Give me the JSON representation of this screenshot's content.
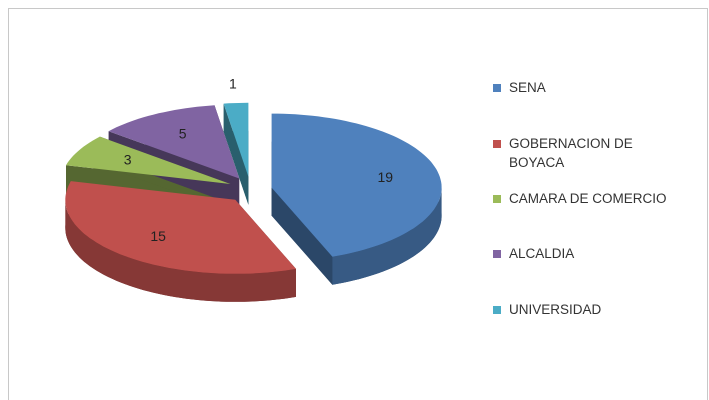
{
  "chart_data": {
    "type": "pie",
    "categories": [
      "SENA",
      "GOBERNACION DE BOYACA",
      "CAMARA DE COMERCIO",
      "ALCALDIA",
      "UNIVERSIDAD"
    ],
    "values": [
      19,
      15,
      3,
      5,
      1
    ],
    "colors": [
      "#4f81bd",
      "#c0504d",
      "#9bbb59",
      "#8064a2",
      "#4bacc6"
    ],
    "legend": "right"
  }
}
